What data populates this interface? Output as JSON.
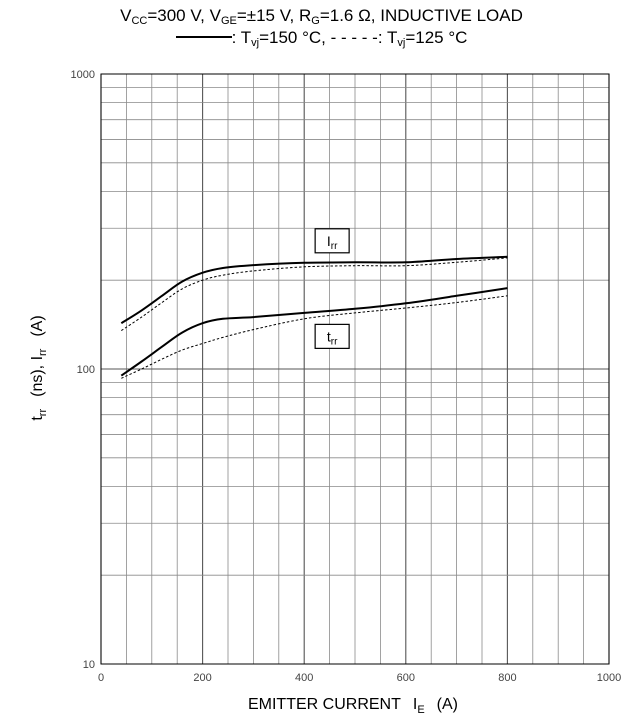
{
  "title": {
    "line1": {
      "vcc_symbol": "V",
      "vcc_sub": "CC",
      "vcc_value": "=300 V, ",
      "vge_symbol": "V",
      "vge_sub": "GE",
      "vge_value": "=±15 V, ",
      "rg_symbol": "R",
      "rg_sub": "G",
      "rg_value": "=1.6 Ω, INDUCTIVE LOAD"
    },
    "line2": {
      "solid_sep": ": T",
      "solid_sub": "vj",
      "solid_value": "=150 °C, ",
      "dash_marker": "- - - - -",
      "dash_sep": ": T",
      "dash_sub": "vj",
      "dash_value": "=125 °C"
    }
  },
  "chart_data": {
    "type": "line",
    "x_scale": "linear",
    "y_scale": "log",
    "xlim": [
      0,
      1000
    ],
    "ylim": [
      10,
      1000
    ],
    "x_ticks": [
      0,
      200,
      400,
      600,
      800,
      1000
    ],
    "y_tick_labels": [
      {
        "value": 1000,
        "label": "1000"
      },
      {
        "value": 100,
        "label": "100"
      },
      {
        "value": 10,
        "label": "10"
      }
    ],
    "grid": true,
    "xlabel": {
      "text": "EMITTER CURRENT",
      "symbol": "I",
      "sub": "E",
      "unit": "(A)"
    },
    "ylabel": {
      "t_symbol": "t",
      "t_sub": "rr",
      "mid": "(ns), I",
      "i_sub": "rr",
      "unit": "(A)"
    },
    "series": [
      {
        "label": "Irr",
        "condition": "Tvj=150 °C",
        "style": "solid",
        "x": [
          40,
          80,
          120,
          160,
          200,
          240,
          300,
          400,
          500,
          600,
          700,
          800
        ],
        "y": [
          143,
          158,
          177,
          198,
          212,
          220,
          225,
          229,
          230,
          230,
          236,
          240
        ]
      },
      {
        "label": "Irr",
        "condition": "Tvj=125 °C",
        "style": "dashed",
        "x": [
          40,
          80,
          120,
          160,
          200,
          240,
          300,
          400,
          500,
          600,
          700,
          800
        ],
        "y": [
          135,
          150,
          168,
          187,
          200,
          208,
          215,
          222,
          224,
          224,
          230,
          238
        ]
      },
      {
        "label": "trr",
        "condition": "Tvj=150 °C",
        "style": "solid",
        "x": [
          40,
          80,
          120,
          160,
          200,
          240,
          300,
          400,
          500,
          600,
          700,
          800
        ],
        "y": [
          95,
          106,
          119,
          133,
          143,
          148,
          150,
          155,
          160,
          167,
          177,
          188
        ]
      },
      {
        "label": "trr",
        "condition": "Tvj=125 °C",
        "style": "dashed",
        "x": [
          40,
          80,
          120,
          160,
          200,
          240,
          300,
          400,
          500,
          600,
          700,
          800
        ],
        "y": [
          93,
          100,
          108,
          116,
          122,
          128,
          136,
          148,
          155,
          161,
          168,
          177
        ]
      }
    ],
    "annotations": [
      {
        "symbol": "I",
        "sub": "rr",
        "x": 455,
        "y": 272
      },
      {
        "symbol": "t",
        "sub": "rr",
        "x": 455,
        "y": 129
      }
    ]
  }
}
